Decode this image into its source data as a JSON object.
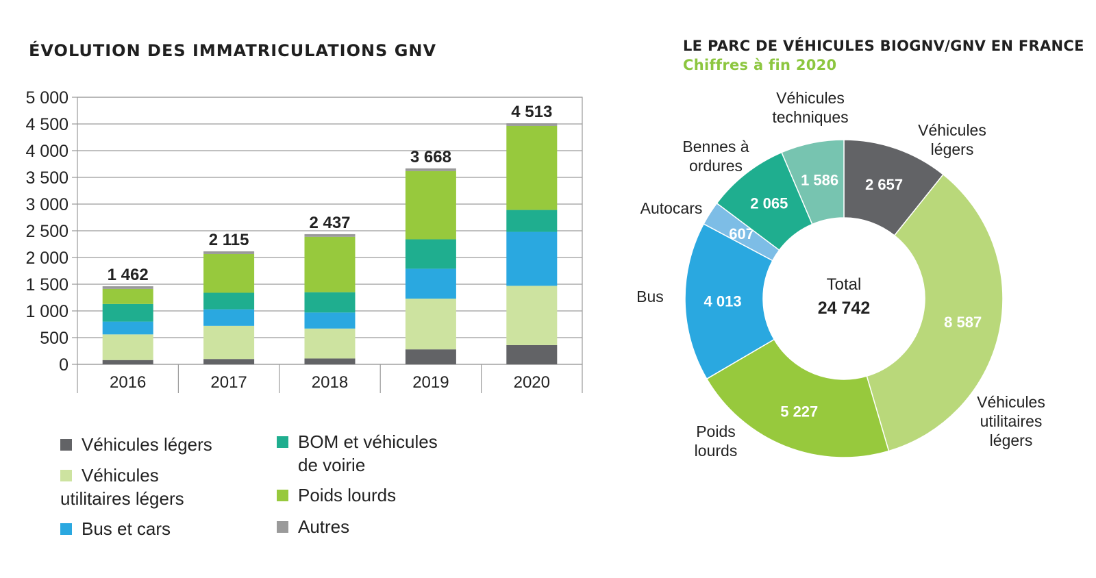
{
  "chart_data": [
    {
      "type": "bar",
      "stacked": true,
      "title": "ÉVOLUTION DES IMMATRICULATIONS GNV",
      "categories": [
        "2016",
        "2017",
        "2018",
        "2019",
        "2020"
      ],
      "totals": [
        "1 462",
        "2 115",
        "2 437",
        "3 668",
        "4 513"
      ],
      "ylim": [
        0,
        5000
      ],
      "yticks": [
        "0",
        "500",
        "1 000",
        "1 500",
        "2 000",
        "2 500",
        "3 000",
        "3 500",
        "4 000",
        "4 500",
        "5 000"
      ],
      "ytick_values": [
        0,
        500,
        1000,
        1500,
        2000,
        2500,
        3000,
        3500,
        4000,
        4500,
        5000
      ],
      "grid": true,
      "series": [
        {
          "name": "Véhicules légers",
          "color": "#626366",
          "values": [
            80,
            100,
            110,
            280,
            360
          ]
        },
        {
          "name": "Véhicules utilitaires légers",
          "color": "#cde3a0",
          "values": [
            480,
            620,
            560,
            950,
            1110
          ]
        },
        {
          "name": "Bus et cars",
          "color": "#2aa8e0",
          "values": [
            240,
            310,
            300,
            560,
            1010
          ]
        },
        {
          "name": "BOM et véhicules de voirie",
          "color": "#1fae8f",
          "values": [
            330,
            310,
            380,
            550,
            410
          ]
        },
        {
          "name": "Poids lourds",
          "color": "#97c93d",
          "values": [
            282,
            725,
            1037,
            1278,
            1573
          ]
        },
        {
          "name": "Autres",
          "color": "#9a9a9a",
          "values": [
            50,
            50,
            50,
            50,
            50
          ]
        }
      ]
    },
    {
      "type": "pie",
      "donut": true,
      "title": "LE PARC DE VÉHICULES BIOGNV/GNV EN FRANCE",
      "subtitle": "Chiffres à fin 2020",
      "center_label": "Total",
      "center_value": "24 742",
      "total": 24742,
      "slices": [
        {
          "name": "Véhicules\nlégers",
          "value": 2657,
          "label": "2 657",
          "color": "#626366"
        },
        {
          "name": "Véhicules\nutilitaires\nlégers",
          "value": 8587,
          "label": "8 587",
          "color": "#b9d87a"
        },
        {
          "name": "Poids\nlourds",
          "value": 5227,
          "label": "5 227",
          "color": "#97c93d"
        },
        {
          "name": "Bus",
          "value": 4013,
          "label": "4 013",
          "color": "#2aa8e0"
        },
        {
          "name": "Autocars",
          "value": 607,
          "label": "607",
          "color": "#7dbde6"
        },
        {
          "name": "Bennes à\nordures",
          "value": 2065,
          "label": "2 065",
          "color": "#1fae8f"
        },
        {
          "name": "Véhicules\ntechniques",
          "value": 1586,
          "label": "1 586",
          "color": "#77c4b0"
        }
      ]
    }
  ],
  "legend": [
    {
      "label": "Véhicules légers",
      "color": "#626366"
    },
    {
      "label": "Véhicules\nutilitaires légers",
      "color": "#cde3a0"
    },
    {
      "label": "Bus et cars",
      "color": "#2aa8e0"
    },
    {
      "label": "BOM et véhicules\nde voirie",
      "color": "#1fae8f"
    },
    {
      "label": "Poids lourds",
      "color": "#97c93d"
    },
    {
      "label": "Autres",
      "color": "#9a9a9a"
    }
  ]
}
